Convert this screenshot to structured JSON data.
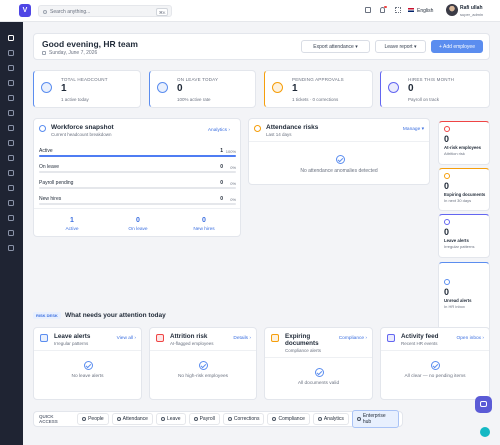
{
  "topbar": {
    "logo": "V",
    "search_placeholder": "Search anything...",
    "shortcut": "⌘K",
    "language": "English",
    "user_name": "Rafi ullah",
    "user_role": "super_admin"
  },
  "header": {
    "greeting": "Good evening, HR team",
    "date": "Sunday, June 7, 2026",
    "buttons": [
      "Export attendance",
      "Leave report",
      "Add employee"
    ]
  },
  "stats": [
    {
      "label": "TOTAL HEADCOUNT",
      "value": "1",
      "note": "1 active today"
    },
    {
      "label": "ON LEAVE TODAY",
      "value": "0",
      "note": "100% active rate"
    },
    {
      "label": "PENDING APPROVALS",
      "value": "1",
      "note": "1 tickets · 0 corrections"
    },
    {
      "label": "HIRES THIS MONTH",
      "value": "0",
      "note": "Payroll on track"
    }
  ],
  "workforce": {
    "title": "Workforce snapshot",
    "subtitle": "Current headcount breakdown",
    "link": "Analytics",
    "rows": [
      {
        "label": "Active",
        "count": "1",
        "percent": "100%"
      },
      {
        "label": "On leave",
        "count": "0",
        "percent": "0%"
      },
      {
        "label": "Payroll pending",
        "count": "0",
        "percent": "0%"
      },
      {
        "label": "New hires",
        "count": "0",
        "percent": "0%"
      }
    ],
    "summary": [
      {
        "value": "1",
        "label": "Active"
      },
      {
        "value": "0",
        "label": "On leave"
      },
      {
        "value": "0",
        "label": "New hires"
      }
    ]
  },
  "attendance_risks": {
    "title": "Attendance risks",
    "subtitle": "Last 14 days",
    "link": "Manage",
    "empty": "No attendance anomalies detected"
  },
  "side_cards": [
    {
      "value": "0",
      "label": "At-risk employees",
      "note": "Attrition risk"
    },
    {
      "value": "0",
      "label": "Expiring documents",
      "note": "In next 30 days"
    },
    {
      "value": "0",
      "label": "Leave alerts",
      "note": "Irregular patterns"
    },
    {
      "value": "0",
      "label": "Unread alerts",
      "note": "In HR inbox"
    }
  ],
  "risk_desk": {
    "badge": "RISK DESK",
    "title": "What needs your attention today",
    "cards": [
      {
        "title": "Leave alerts",
        "subtitle": "Irregular patterns",
        "link": "View all",
        "empty": "No leave alerts"
      },
      {
        "title": "Attrition risk",
        "subtitle": "AI-flagged employees",
        "link": "Details",
        "empty": "No high-risk employees"
      },
      {
        "title": "Expiring documents",
        "subtitle": "Compliance alerts",
        "link": "Compliance",
        "empty": "All documents valid"
      },
      {
        "title": "Activity feed",
        "subtitle": "Recent HR events",
        "link": "Open inbox",
        "empty": "All clear — no pending items"
      }
    ]
  },
  "quick_access": {
    "label": "QUICK ACCESS",
    "items": [
      "People",
      "Attendance",
      "Leave",
      "Payroll",
      "Corrections",
      "Compliance",
      "Analytics",
      "Enterprise hub"
    ]
  }
}
